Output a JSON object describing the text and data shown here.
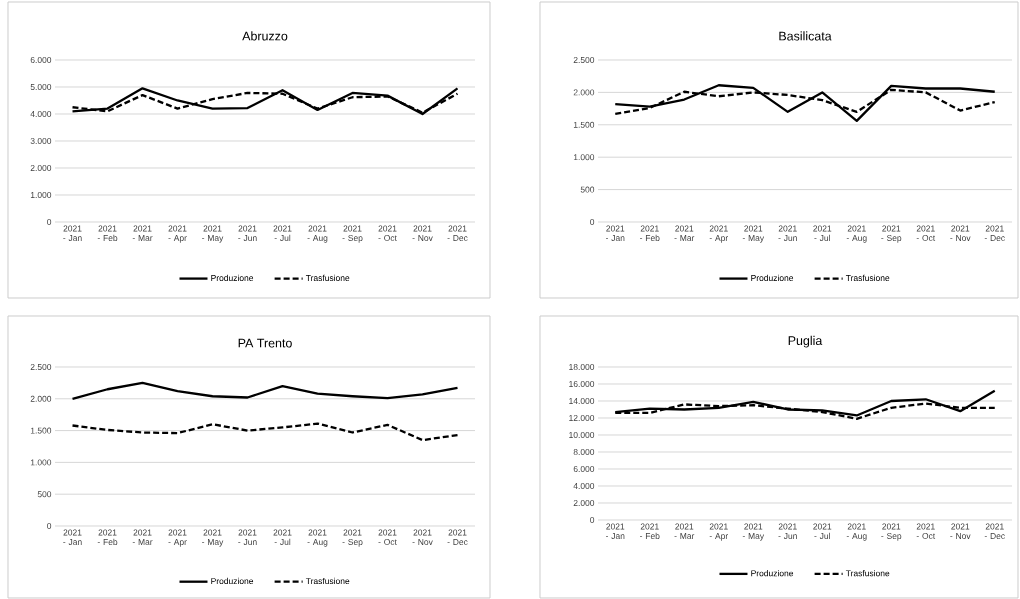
{
  "chart_data": [
    {
      "type": "line",
      "title": "Abruzzo",
      "categories": [
        "2021 - Jan",
        "2021 - Feb",
        "2021 - Mar",
        "2021 - Apr",
        "2021 - May",
        "2021 - Jun",
        "2021 - Jul",
        "2021 - Aug",
        "2021 - Sep",
        "2021 - Oct",
        "2021 - Nov",
        "2021 - Dec"
      ],
      "series": [
        {
          "name": "Produzione",
          "color": "#000000",
          "line_style": "solid",
          "values": [
            4100,
            4200,
            4950,
            4500,
            4200,
            4220,
            4880,
            4150,
            4780,
            4680,
            4000,
            4950
          ]
        },
        {
          "name": "Trasfusione",
          "color": "#000000",
          "line_style": "dashed",
          "values": [
            4250,
            4100,
            4700,
            4200,
            4550,
            4780,
            4750,
            4200,
            4620,
            4650,
            4050,
            4750
          ]
        }
      ],
      "ylim": [
        0,
        6000
      ],
      "yticks": [
        0,
        {
          "value": 1000,
          "label": "1.000"
        },
        {
          "value": 2000,
          "label": "2.000"
        },
        {
          "value": 3000,
          "label": "3.000"
        },
        {
          "value": 4000,
          "label": "4.000"
        },
        {
          "value": 5000,
          "label": "5.000"
        },
        {
          "value": 6000,
          "label": "6.000"
        }
      ],
      "grid": "y",
      "legend": "bottom"
    },
    {
      "type": "line",
      "title": "Basilicata",
      "categories": [
        "2021 - Jan",
        "2021 - Feb",
        "2021 - Mar",
        "2021 - Apr",
        "2021 - May",
        "2021 - Jun",
        "2021 - Jul",
        "2021 - Aug",
        "2021 - Sep",
        "2021 - Oct",
        "2021 - Nov",
        "2021 - Dec"
      ],
      "series": [
        {
          "name": "Produzione",
          "color": "#000000",
          "line_style": "solid",
          "values": [
            1820,
            1780,
            1890,
            2110,
            2070,
            1700,
            2000,
            1560,
            2100,
            2060,
            2060,
            2010
          ]
        },
        {
          "name": "Trasfusione",
          "color": "#000000",
          "line_style": "dashed",
          "values": [
            1670,
            1760,
            2010,
            1940,
            2000,
            1960,
            1880,
            1700,
            2040,
            2000,
            1720,
            1850
          ]
        }
      ],
      "ylim": [
        0,
        2500
      ],
      "yticks": [
        0,
        500,
        {
          "value": 1000,
          "label": "1.000"
        },
        {
          "value": 1500,
          "label": "1.500"
        },
        {
          "value": 2000,
          "label": "2.000"
        },
        {
          "value": 2500,
          "label": "2.500"
        }
      ],
      "grid": "y",
      "legend": "bottom"
    },
    {
      "type": "line",
      "title": "PA Trento",
      "categories": [
        "2021 - Jan",
        "2021 - Feb",
        "2021 - Mar",
        "2021 - Apr",
        "2021 - May",
        "2021 - Jun",
        "2021 - Jul",
        "2021 - Aug",
        "2021 - Sep",
        "2021 - Oct",
        "2021 - Nov",
        "2021 - Dec"
      ],
      "series": [
        {
          "name": "Produzione",
          "color": "#000000",
          "line_style": "solid",
          "values": [
            2000,
            2150,
            2250,
            2120,
            2040,
            2020,
            2200,
            2080,
            2040,
            2010,
            2070,
            2170
          ]
        },
        {
          "name": "Trasfusione",
          "color": "#000000",
          "line_style": "dashed",
          "values": [
            1580,
            1510,
            1470,
            1460,
            1600,
            1500,
            1550,
            1610,
            1470,
            1590,
            1350,
            1430
          ]
        }
      ],
      "ylim": [
        0,
        2500
      ],
      "yticks": [
        0,
        500,
        {
          "value": 1000,
          "label": "1.000"
        },
        {
          "value": 1500,
          "label": "1.500"
        },
        {
          "value": 2000,
          "label": "2.000"
        },
        {
          "value": 2500,
          "label": "2.500"
        }
      ],
      "grid": "y",
      "legend": "bottom"
    },
    {
      "type": "line",
      "title": "Puglia",
      "categories": [
        "2021 - Jan",
        "2021 - Feb",
        "2021 - Mar",
        "2021 - Apr",
        "2021 - May",
        "2021 - Jun",
        "2021 - Jul",
        "2021 - Aug",
        "2021 - Sep",
        "2021 - Oct",
        "2021 - Nov",
        "2021 - Dec"
      ],
      "series": [
        {
          "name": "Produzione",
          "color": "#000000",
          "line_style": "solid",
          "values": [
            12700,
            13100,
            13000,
            13200,
            13900,
            13000,
            12900,
            12300,
            14000,
            14200,
            12800,
            15200
          ]
        },
        {
          "name": "Trasfusione",
          "color": "#000000",
          "line_style": "dashed",
          "values": [
            12600,
            12600,
            13600,
            13400,
            13500,
            13100,
            12700,
            11900,
            13200,
            13700,
            13200,
            13200
          ]
        }
      ],
      "ylim": [
        0,
        18000
      ],
      "yticks": [
        0,
        {
          "value": 2000,
          "label": "2.000"
        },
        {
          "value": 4000,
          "label": "4.000"
        },
        {
          "value": 6000,
          "label": "6.000"
        },
        {
          "value": 8000,
          "label": "8.000"
        },
        {
          "value": 10000,
          "label": "10.000"
        },
        {
          "value": 12000,
          "label": "12.000"
        },
        {
          "value": 14000,
          "label": "14.000"
        },
        {
          "value": 16000,
          "label": "16.000"
        },
        {
          "value": 18000,
          "label": "18.000"
        }
      ],
      "grid": "y",
      "legend": "bottom"
    }
  ]
}
